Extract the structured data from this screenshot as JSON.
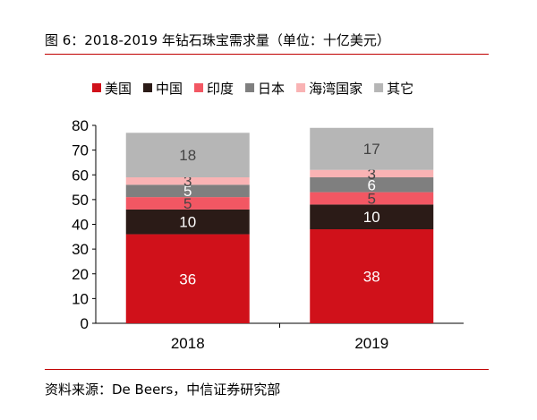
{
  "header": {
    "title": "图 6：2018-2019 年钻石珠宝需求量（单位：十亿美元）"
  },
  "footer": {
    "source": "资料来源：De Beers，中信证券研究部"
  },
  "chart_data": {
    "type": "bar",
    "stacked": true,
    "categories": [
      "2018",
      "2019"
    ],
    "series": [
      {
        "name": "美国",
        "color": "#d0111a",
        "label_color": "#ffffff",
        "values": [
          36,
          38
        ]
      },
      {
        "name": "中国",
        "color": "#2b1b17",
        "label_color": "#ffffff",
        "values": [
          10,
          10
        ]
      },
      {
        "name": "印度",
        "color": "#f25763",
        "label_color": "#444444",
        "values": [
          5,
          5
        ]
      },
      {
        "name": "日本",
        "color": "#7f7f7f",
        "label_color": "#ffffff",
        "values": [
          5,
          6
        ]
      },
      {
        "name": "海湾国家",
        "color": "#f9b3b4",
        "label_color": "#444444",
        "values": [
          3,
          3
        ]
      },
      {
        "name": "其它",
        "color": "#b6b6b6",
        "label_color": "#444444",
        "values": [
          18,
          17
        ]
      }
    ],
    "title": "",
    "xlabel": "",
    "ylabel": "",
    "ylim": [
      0,
      80
    ],
    "yticks": [
      0,
      10,
      20,
      30,
      40,
      50,
      60,
      70,
      80
    ],
    "grid": false,
    "legend": "top"
  }
}
